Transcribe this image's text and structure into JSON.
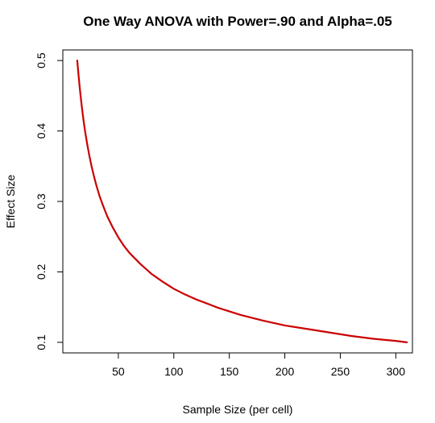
{
  "chart_data": {
    "type": "line",
    "title": "One Way ANOVA with Power=.90 and Alpha=.05",
    "xlabel": "Sample Size (per cell)",
    "ylabel": "Effect Size",
    "xlim": [
      0,
      315
    ],
    "ylim": [
      0.085,
      0.515
    ],
    "xticks": [
      50,
      100,
      150,
      200,
      250,
      300
    ],
    "yticks": [
      0.1,
      0.2,
      0.3,
      0.4,
      0.5
    ],
    "xtick_labels": [
      "50",
      "100",
      "150",
      "200",
      "250",
      "300"
    ],
    "ytick_labels": [
      "0.1",
      "0.2",
      "0.3",
      "0.4",
      "0.5"
    ],
    "grid": false,
    "legend": "none",
    "series": [
      {
        "color": "#cc0000",
        "x": [
          13,
          14,
          15,
          16,
          17,
          18,
          19,
          20,
          22,
          24,
          26,
          28,
          30,
          33,
          36,
          40,
          45,
          50,
          55,
          60,
          70,
          80,
          90,
          100,
          110,
          120,
          140,
          160,
          180,
          200,
          220,
          240,
          260,
          280,
          300,
          310
        ],
        "y": [
          0.5,
          0.482,
          0.465,
          0.45,
          0.436,
          0.423,
          0.411,
          0.4,
          0.381,
          0.364,
          0.349,
          0.336,
          0.324,
          0.308,
          0.295,
          0.279,
          0.263,
          0.249,
          0.237,
          0.227,
          0.211,
          0.197,
          0.186,
          0.176,
          0.168,
          0.161,
          0.149,
          0.139,
          0.131,
          0.124,
          0.119,
          0.114,
          0.109,
          0.105,
          0.102,
          0.1
        ]
      }
    ]
  }
}
